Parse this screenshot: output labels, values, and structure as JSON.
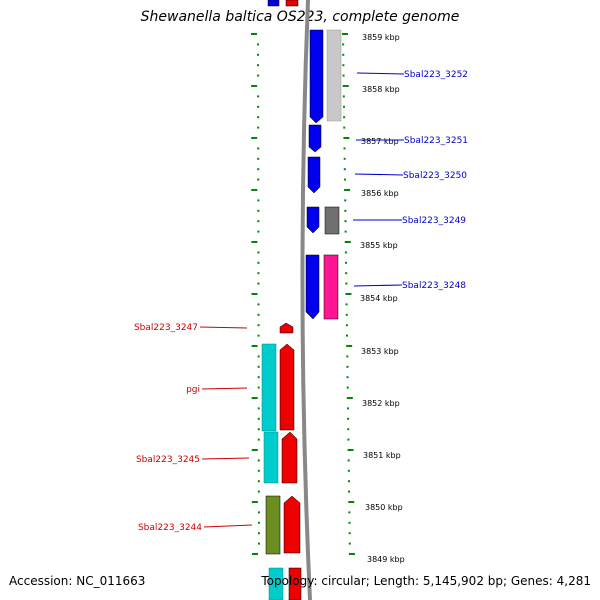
{
  "title": "Shewanella baltica OS223, complete genome",
  "accession": "Accession: NC_011663",
  "topology": "Topology: circular; Length: 5,145,902 bp; Genes: 4,281",
  "scale_labels": [
    "3859 kbp",
    "3858 kbp",
    "3857 kbp",
    "3856 kbp",
    "3855 kbp",
    "3854 kbp",
    "3853 kbp",
    "3852 kbp",
    "3851 kbp",
    "3850 kbp",
    "3849 kbp"
  ],
  "right_genes": [
    "Sbal223_3252",
    "Sbal223_3251",
    "Sbal223_3250",
    "Sbal223_3249",
    "Sbal223_3248"
  ],
  "left_genes": [
    "Sbal223_3247",
    "pgi",
    "Sbal223_3245",
    "Sbal223_3244"
  ],
  "colors": {
    "strand_plus": "#0000ee",
    "strand_minus": "#ee0000",
    "label_plus": "#0000cc",
    "label_minus": "#cc0000",
    "tick": "#008800",
    "backbone": "#888888",
    "cyan": "#00cccc",
    "olive": "#6b8e23",
    "silver": "#c8c8c8",
    "gray": "#707070",
    "pink": "#ff1493"
  }
}
